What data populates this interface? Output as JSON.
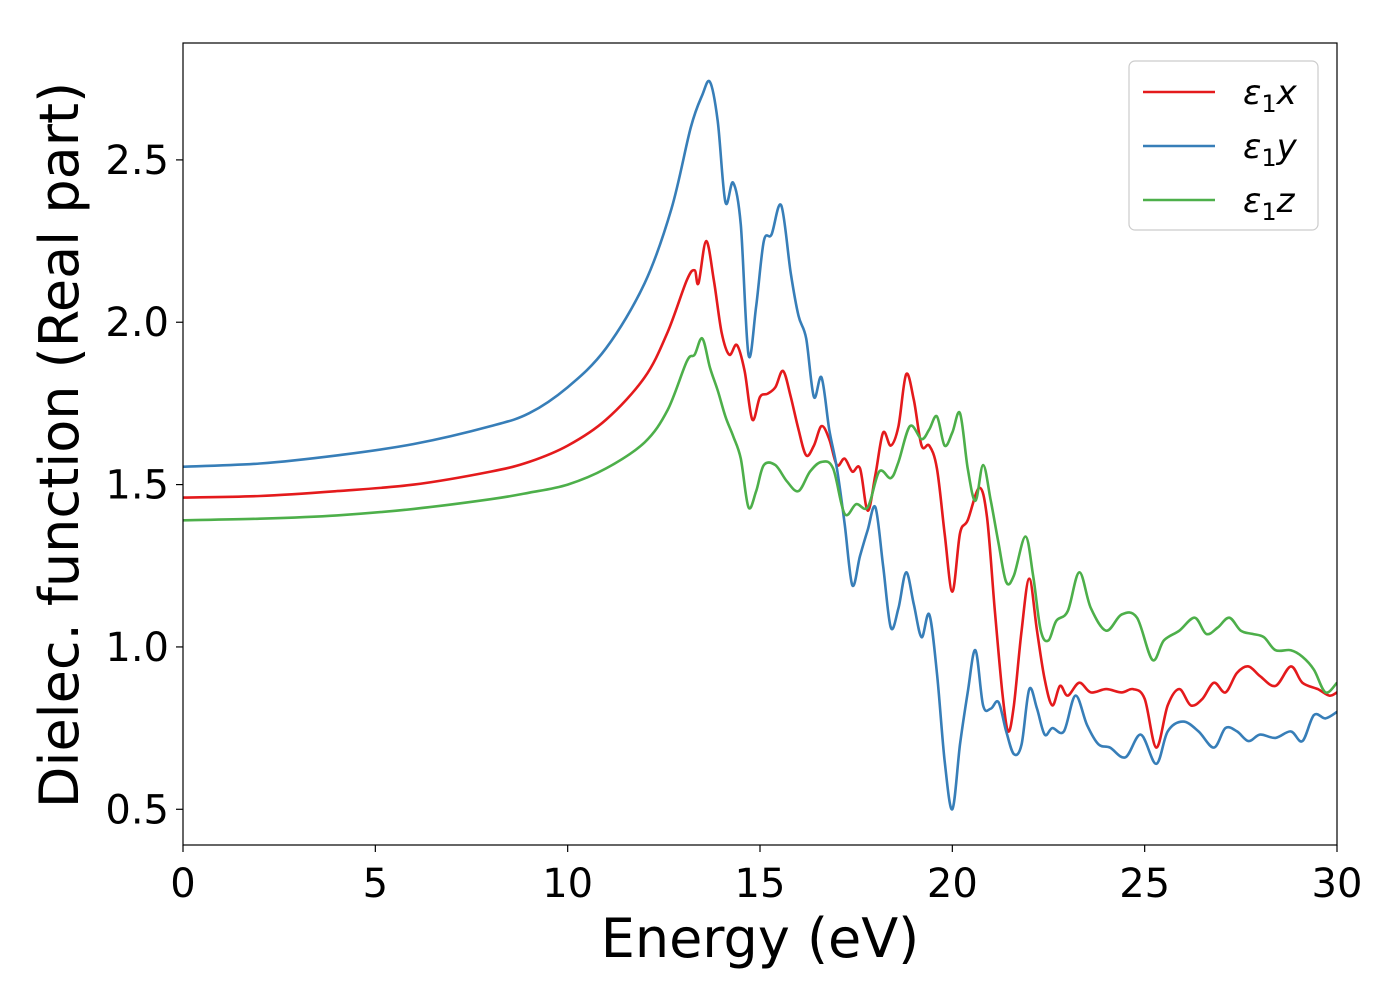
{
  "chart_data": {
    "type": "line",
    "title": "",
    "xlabel": "Energy (eV)",
    "ylabel": "Dielec. function (Real part)",
    "xlim": [
      0,
      30
    ],
    "ylim": [
      0.39,
      2.86
    ],
    "xticks": [
      0,
      5,
      10,
      15,
      20,
      25,
      30
    ],
    "xtick_labels": [
      "0",
      "5",
      "10",
      "15",
      "20",
      "25",
      "30"
    ],
    "yticks": [
      0.5,
      1.0,
      1.5,
      2.0,
      2.5
    ],
    "ytick_labels": [
      "0.5",
      "1.0",
      "1.5",
      "2.0",
      "2.5"
    ],
    "grid": false,
    "legend_position": "top-right",
    "series": [
      {
        "name": "ε1x",
        "legend": {
          "symbol": "ε",
          "sub": "1",
          "axis": "x"
        },
        "color": "#e41a1c",
        "points": [
          [
            0,
            1.46
          ],
          [
            2,
            1.465
          ],
          [
            4,
            1.48
          ],
          [
            6,
            1.5
          ],
          [
            8,
            1.54
          ],
          [
            9,
            1.57
          ],
          [
            10,
            1.62
          ],
          [
            11,
            1.7
          ],
          [
            12,
            1.83
          ],
          [
            12.6,
            1.97
          ],
          [
            13.1,
            2.13
          ],
          [
            13.3,
            2.16
          ],
          [
            13.4,
            2.12
          ],
          [
            13.6,
            2.25
          ],
          [
            13.8,
            2.13
          ],
          [
            14,
            1.97
          ],
          [
            14.2,
            1.9
          ],
          [
            14.4,
            1.93
          ],
          [
            14.6,
            1.85
          ],
          [
            14.8,
            1.7
          ],
          [
            15,
            1.77
          ],
          [
            15.2,
            1.78
          ],
          [
            15.4,
            1.8
          ],
          [
            15.6,
            1.85
          ],
          [
            15.8,
            1.77
          ],
          [
            16.0,
            1.67
          ],
          [
            16.2,
            1.59
          ],
          [
            16.4,
            1.62
          ],
          [
            16.6,
            1.68
          ],
          [
            16.8,
            1.64
          ],
          [
            17.0,
            1.56
          ],
          [
            17.2,
            1.58
          ],
          [
            17.4,
            1.54
          ],
          [
            17.6,
            1.55
          ],
          [
            17.8,
            1.42
          ],
          [
            18.0,
            1.53
          ],
          [
            18.2,
            1.66
          ],
          [
            18.4,
            1.62
          ],
          [
            18.6,
            1.68
          ],
          [
            18.8,
            1.84
          ],
          [
            19.0,
            1.76
          ],
          [
            19.2,
            1.62
          ],
          [
            19.4,
            1.62
          ],
          [
            19.6,
            1.55
          ],
          [
            19.8,
            1.35
          ],
          [
            20.0,
            1.17
          ],
          [
            20.2,
            1.35
          ],
          [
            20.4,
            1.39
          ],
          [
            20.7,
            1.49
          ],
          [
            20.9,
            1.4
          ],
          [
            21.1,
            1.12
          ],
          [
            21.3,
            0.86
          ],
          [
            21.45,
            0.74
          ],
          [
            21.6,
            0.82
          ],
          [
            21.8,
            1.05
          ],
          [
            22.0,
            1.21
          ],
          [
            22.2,
            1.05
          ],
          [
            22.4,
            0.9
          ],
          [
            22.6,
            0.82
          ],
          [
            22.8,
            0.88
          ],
          [
            23.0,
            0.85
          ],
          [
            23.3,
            0.89
          ],
          [
            23.6,
            0.86
          ],
          [
            24.0,
            0.87
          ],
          [
            24.4,
            0.86
          ],
          [
            24.7,
            0.87
          ],
          [
            25.0,
            0.84
          ],
          [
            25.3,
            0.69
          ],
          [
            25.6,
            0.82
          ],
          [
            25.9,
            0.87
          ],
          [
            26.2,
            0.82
          ],
          [
            26.5,
            0.84
          ],
          [
            26.8,
            0.89
          ],
          [
            27.1,
            0.86
          ],
          [
            27.4,
            0.92
          ],
          [
            27.7,
            0.94
          ],
          [
            28.0,
            0.91
          ],
          [
            28.4,
            0.88
          ],
          [
            28.8,
            0.94
          ],
          [
            29.1,
            0.89
          ],
          [
            29.5,
            0.87
          ],
          [
            29.8,
            0.85
          ],
          [
            30,
            0.86
          ]
        ]
      },
      {
        "name": "ε1y",
        "legend": {
          "symbol": "ε",
          "sub": "1",
          "axis": "y"
        },
        "color": "#377eb8",
        "points": [
          [
            0,
            1.555
          ],
          [
            2,
            1.565
          ],
          [
            4,
            1.59
          ],
          [
            6,
            1.625
          ],
          [
            8,
            1.68
          ],
          [
            9,
            1.72
          ],
          [
            10,
            1.8
          ],
          [
            11,
            1.92
          ],
          [
            12,
            2.12
          ],
          [
            12.7,
            2.35
          ],
          [
            13.2,
            2.6
          ],
          [
            13.5,
            2.7
          ],
          [
            13.7,
            2.74
          ],
          [
            13.9,
            2.62
          ],
          [
            14.1,
            2.37
          ],
          [
            14.3,
            2.43
          ],
          [
            14.5,
            2.3
          ],
          [
            14.7,
            1.9
          ],
          [
            14.9,
            2.05
          ],
          [
            15.1,
            2.25
          ],
          [
            15.3,
            2.27
          ],
          [
            15.55,
            2.36
          ],
          [
            15.8,
            2.15
          ],
          [
            16.0,
            2.02
          ],
          [
            16.2,
            1.95
          ],
          [
            16.4,
            1.77
          ],
          [
            16.6,
            1.83
          ],
          [
            16.8,
            1.67
          ],
          [
            17.0,
            1.55
          ],
          [
            17.2,
            1.38
          ],
          [
            17.4,
            1.19
          ],
          [
            17.6,
            1.28
          ],
          [
            17.8,
            1.36
          ],
          [
            18.0,
            1.43
          ],
          [
            18.2,
            1.25
          ],
          [
            18.4,
            1.06
          ],
          [
            18.6,
            1.12
          ],
          [
            18.8,
            1.23
          ],
          [
            19.0,
            1.13
          ],
          [
            19.2,
            1.03
          ],
          [
            19.4,
            1.1
          ],
          [
            19.6,
            0.92
          ],
          [
            19.8,
            0.65
          ],
          [
            20.0,
            0.5
          ],
          [
            20.2,
            0.7
          ],
          [
            20.4,
            0.86
          ],
          [
            20.6,
            0.99
          ],
          [
            20.8,
            0.82
          ],
          [
            21.0,
            0.81
          ],
          [
            21.2,
            0.83
          ],
          [
            21.4,
            0.74
          ],
          [
            21.6,
            0.67
          ],
          [
            21.8,
            0.7
          ],
          [
            22.0,
            0.87
          ],
          [
            22.2,
            0.81
          ],
          [
            22.4,
            0.73
          ],
          [
            22.6,
            0.75
          ],
          [
            22.9,
            0.74
          ],
          [
            23.2,
            0.85
          ],
          [
            23.5,
            0.76
          ],
          [
            23.8,
            0.7
          ],
          [
            24.1,
            0.69
          ],
          [
            24.5,
            0.66
          ],
          [
            24.9,
            0.73
          ],
          [
            25.3,
            0.64
          ],
          [
            25.6,
            0.74
          ],
          [
            26.0,
            0.77
          ],
          [
            26.4,
            0.74
          ],
          [
            26.8,
            0.69
          ],
          [
            27.1,
            0.75
          ],
          [
            27.4,
            0.74
          ],
          [
            27.7,
            0.71
          ],
          [
            28.0,
            0.73
          ],
          [
            28.4,
            0.72
          ],
          [
            28.8,
            0.74
          ],
          [
            29.1,
            0.71
          ],
          [
            29.4,
            0.79
          ],
          [
            29.7,
            0.78
          ],
          [
            30,
            0.8
          ]
        ]
      },
      {
        "name": "ε1z",
        "legend": {
          "symbol": "ε",
          "sub": "1",
          "axis": "z"
        },
        "color": "#4daf4a",
        "points": [
          [
            0,
            1.39
          ],
          [
            2,
            1.395
          ],
          [
            4,
            1.405
          ],
          [
            6,
            1.425
          ],
          [
            8,
            1.455
          ],
          [
            9,
            1.475
          ],
          [
            10,
            1.5
          ],
          [
            11,
            1.55
          ],
          [
            12,
            1.63
          ],
          [
            12.6,
            1.73
          ],
          [
            13.1,
            1.88
          ],
          [
            13.3,
            1.9
          ],
          [
            13.5,
            1.95
          ],
          [
            13.7,
            1.86
          ],
          [
            13.9,
            1.79
          ],
          [
            14.1,
            1.71
          ],
          [
            14.3,
            1.65
          ],
          [
            14.5,
            1.58
          ],
          [
            14.7,
            1.43
          ],
          [
            14.9,
            1.48
          ],
          [
            15.1,
            1.56
          ],
          [
            15.4,
            1.56
          ],
          [
            15.7,
            1.51
          ],
          [
            16.0,
            1.48
          ],
          [
            16.3,
            1.54
          ],
          [
            16.6,
            1.57
          ],
          [
            16.9,
            1.55
          ],
          [
            17.2,
            1.41
          ],
          [
            17.5,
            1.44
          ],
          [
            17.8,
            1.43
          ],
          [
            18.1,
            1.54
          ],
          [
            18.4,
            1.52
          ],
          [
            18.6,
            1.57
          ],
          [
            18.9,
            1.68
          ],
          [
            19.2,
            1.64
          ],
          [
            19.4,
            1.67
          ],
          [
            19.6,
            1.71
          ],
          [
            19.8,
            1.62
          ],
          [
            20.0,
            1.66
          ],
          [
            20.2,
            1.72
          ],
          [
            20.4,
            1.55
          ],
          [
            20.6,
            1.45
          ],
          [
            20.8,
            1.56
          ],
          [
            21.0,
            1.45
          ],
          [
            21.2,
            1.32
          ],
          [
            21.4,
            1.2
          ],
          [
            21.6,
            1.22
          ],
          [
            21.9,
            1.34
          ],
          [
            22.1,
            1.22
          ],
          [
            22.3,
            1.05
          ],
          [
            22.5,
            1.02
          ],
          [
            22.7,
            1.08
          ],
          [
            23.0,
            1.11
          ],
          [
            23.3,
            1.23
          ],
          [
            23.6,
            1.12
          ],
          [
            24.0,
            1.05
          ],
          [
            24.4,
            1.1
          ],
          [
            24.8,
            1.09
          ],
          [
            25.2,
            0.96
          ],
          [
            25.5,
            1.02
          ],
          [
            25.9,
            1.05
          ],
          [
            26.3,
            1.09
          ],
          [
            26.6,
            1.04
          ],
          [
            26.9,
            1.06
          ],
          [
            27.2,
            1.09
          ],
          [
            27.5,
            1.05
          ],
          [
            27.8,
            1.04
          ],
          [
            28.1,
            1.03
          ],
          [
            28.4,
            0.99
          ],
          [
            28.8,
            0.99
          ],
          [
            29.1,
            0.97
          ],
          [
            29.4,
            0.93
          ],
          [
            29.7,
            0.86
          ],
          [
            30,
            0.89
          ]
        ]
      }
    ]
  }
}
